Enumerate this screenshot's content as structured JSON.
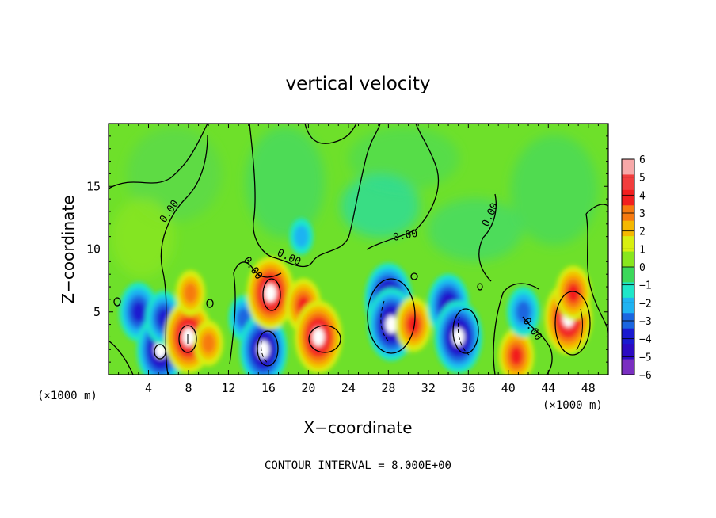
{
  "chart_data": {
    "type": "heatmap",
    "title": "vertical velocity",
    "xlabel": "X−coordinate",
    "ylabel": "Z−coordinate",
    "x_unit": "(×1000 m)",
    "y_unit": "(×1000 m)",
    "xlim": [
      0,
      50
    ],
    "ylim": [
      0,
      20
    ],
    "x_ticks": [
      4,
      8,
      12,
      16,
      20,
      24,
      28,
      32,
      36,
      40,
      44,
      48
    ],
    "y_ticks": [
      5,
      10,
      15
    ],
    "colorbar": {
      "min": -6,
      "max": 6,
      "levels": [
        "6",
        "5",
        "4",
        "3",
        "2",
        "1",
        "0",
        "−1",
        "−2",
        "−3",
        "−4",
        "−5",
        "−6"
      ],
      "colors": [
        "#f7a8a8",
        "#f23d3d",
        "#f21f1f",
        "#f77a10",
        "#f5b800",
        "#d8ef10",
        "#88e61e",
        "#3bd85a",
        "#1ee6c9",
        "#1fb3f2",
        "#1a66e0",
        "#1a1ad0",
        "#2b0ac2",
        "#7a2fc1"
      ]
    },
    "contour_labels": [
      "0.00",
      "0.00",
      "0.00",
      "0.00",
      "0.00",
      "0.00"
    ],
    "field": [
      {
        "x": 3.0,
        "z": 5.0,
        "w": -4.5
      },
      {
        "x": 5.2,
        "z": 2.0,
        "w": -6
      },
      {
        "x": 5.5,
        "z": 4.5,
        "w": -4
      },
      {
        "x": 8.0,
        "z": 3.0,
        "w": 6
      },
      {
        "x": 8.2,
        "z": 6.5,
        "w": 3
      },
      {
        "x": 10.0,
        "z": 2.5,
        "w": 3
      },
      {
        "x": 13.5,
        "z": 4.5,
        "w": -3
      },
      {
        "x": 15.5,
        "z": 2.0,
        "w": -6
      },
      {
        "x": 16.2,
        "z": 6.5,
        "w": 6
      },
      {
        "x": 19.5,
        "z": 5.5,
        "w": 4
      },
      {
        "x": 21.0,
        "z": 3.0,
        "w": 6
      },
      {
        "x": 19.3,
        "z": 11.0,
        "w": -2
      },
      {
        "x": 28.0,
        "z": 6.0,
        "w": -6
      },
      {
        "x": 28.3,
        "z": 4.0,
        "w": -6
      },
      {
        "x": 30.5,
        "z": 4.0,
        "w": 4
      },
      {
        "x": 34.0,
        "z": 5.5,
        "w": -5
      },
      {
        "x": 35.0,
        "z": 3.0,
        "w": -6
      },
      {
        "x": 40.8,
        "z": 1.5,
        "w": 4
      },
      {
        "x": 41.5,
        "z": 5.0,
        "w": -3.5
      },
      {
        "x": 46.0,
        "z": 4.5,
        "w": 6
      },
      {
        "x": 46.5,
        "z": 6.5,
        "w": 4
      }
    ]
  },
  "footer_text": "CONTOUR INTERVAL = 8.000E+00"
}
